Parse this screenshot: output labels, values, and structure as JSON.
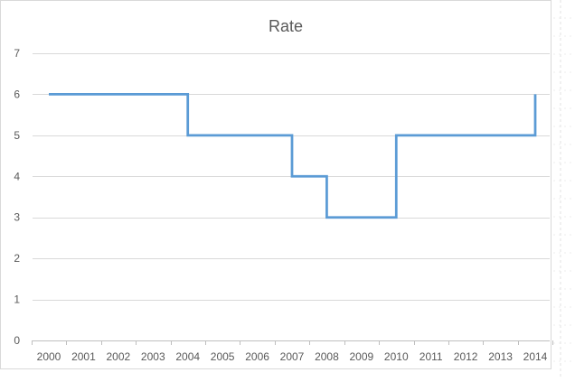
{
  "chart_data": {
    "type": "line",
    "title": "Rate",
    "xlabel": "",
    "ylabel": "",
    "categories": [
      "2000",
      "2001",
      "2002",
      "2003",
      "2004",
      "2005",
      "2006",
      "2007",
      "2008",
      "2009",
      "2010",
      "2011",
      "2012",
      "2013",
      "2014"
    ],
    "series": [
      {
        "values": [
          6,
          6,
          6,
          6,
          5,
          5,
          5,
          4,
          3,
          3,
          5,
          5,
          5,
          5,
          6
        ],
        "step": "post",
        "color": "#5b9bd5"
      }
    ],
    "ylim": [
      0,
      7
    ],
    "yticks": [
      0,
      1,
      2,
      3,
      4,
      5,
      6,
      7
    ],
    "grid": true,
    "legend": "none"
  }
}
